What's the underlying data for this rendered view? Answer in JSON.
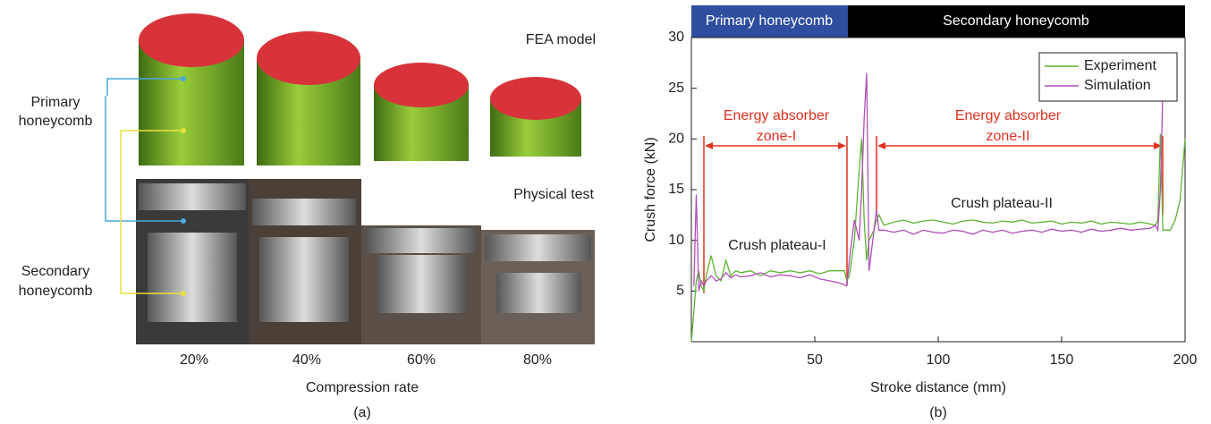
{
  "panel_a": {
    "fea_label": "FEA model",
    "physical_label": "Physical test",
    "primary_label": [
      "Primary",
      "honeycomb"
    ],
    "secondary_label": [
      "Secondary",
      "honeycomb"
    ],
    "rates": [
      "20%",
      "40%",
      "60%",
      "80%"
    ],
    "x_label": "Compression rate",
    "caption": "(a)"
  },
  "chart_data": {
    "type": "line",
    "caption": "(b)",
    "x_label": "Stroke distance (mm)",
    "y_label": "Crush force (kN)",
    "bands": [
      "Primary honeycomb",
      "Secondary honeycomb"
    ],
    "zones": [
      [
        "Energy absorber",
        "zone-I"
      ],
      [
        "Energy absorber",
        "zone-II"
      ]
    ],
    "plateaus": [
      "Crush plateau-I",
      "Crush plateau-II"
    ],
    "x": [
      0,
      1,
      2,
      3,
      4,
      5,
      6,
      8,
      10,
      12,
      14,
      16,
      18,
      20,
      24,
      28,
      32,
      36,
      40,
      44,
      48,
      52,
      56,
      60,
      62,
      63,
      64,
      66,
      68,
      69,
      70,
      71,
      72,
      74,
      75,
      76,
      78,
      82,
      86,
      90,
      94,
      98,
      102,
      106,
      110,
      114,
      118,
      122,
      126,
      130,
      134,
      138,
      142,
      146,
      150,
      154,
      158,
      162,
      166,
      170,
      174,
      178,
      182,
      186,
      188,
      189,
      190,
      191,
      192,
      194,
      196,
      198,
      200
    ],
    "series": [
      {
        "name": "Experiment",
        "color": "#5cb531",
        "values": [
          0,
          3,
          6,
          7,
          5.5,
          5,
          6.5,
          8.5,
          6.5,
          6,
          8,
          6.5,
          7,
          6.8,
          7,
          6.5,
          7,
          6.8,
          7,
          6.8,
          7,
          6.7,
          7,
          7,
          7,
          6,
          6.5,
          10,
          17,
          20,
          12,
          8,
          10,
          11,
          12,
          12.5,
          11.5,
          11.8,
          12,
          11.7,
          11.9,
          12,
          11.8,
          11.6,
          11.9,
          12,
          11.8,
          11.7,
          11.9,
          11.8,
          12,
          11.7,
          11.8,
          11.9,
          11.6,
          11.8,
          11.7,
          11.9,
          11.6,
          11.8,
          11.7,
          11.6,
          11.8,
          11.6,
          11.5,
          12,
          20.5,
          11,
          11,
          11,
          12,
          14,
          20
        ]
      },
      {
        "name": "Simulation",
        "color": "#b04fb8",
        "values": [
          null,
          5.5,
          14.5,
          5,
          6,
          5.5,
          6,
          6.5,
          6,
          6.2,
          6.8,
          6.3,
          6.6,
          6.4,
          6.5,
          6.8,
          6.4,
          6.6,
          6.5,
          6.3,
          6.6,
          6.2,
          6,
          5.8,
          5.6,
          5.5,
          8,
          12,
          10,
          15,
          22,
          26.5,
          7,
          11,
          13,
          11,
          11,
          10.8,
          11,
          10.6,
          11,
          10.8,
          10.7,
          11,
          10.9,
          10.6,
          11,
          10.8,
          11,
          10.7,
          10.9,
          11,
          10.8,
          11.1,
          10.9,
          11,
          10.8,
          11.1,
          10.9,
          11,
          11.2,
          11,
          11.1,
          11.2,
          11.5,
          11,
          15,
          25,
          null,
          null,
          null,
          null,
          null
        ]
      }
    ],
    "xlim": [
      0,
      200
    ],
    "ylim": [
      0,
      30
    ],
    "xticks": [
      50,
      100,
      150,
      200
    ],
    "yticks": [
      5,
      10,
      15,
      20,
      25,
      30
    ],
    "legend": "upper right"
  }
}
